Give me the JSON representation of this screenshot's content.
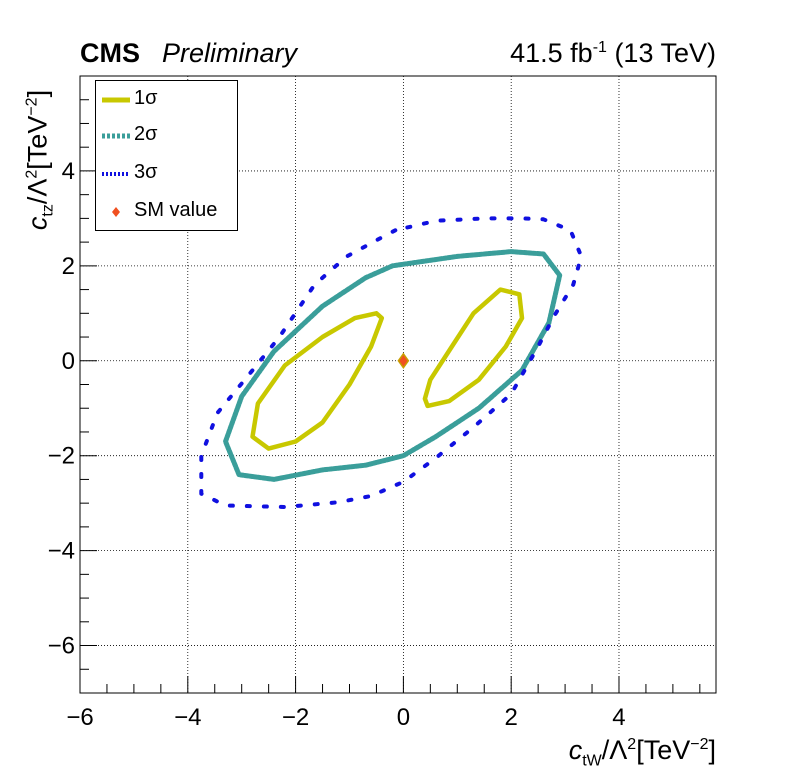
{
  "header": {
    "experiment": "CMS",
    "status": "Preliminary",
    "lumi_value": "41.5 fb",
    "lumi_exp": "-1",
    "energy": "(13 TeV)"
  },
  "colors": {
    "one_sigma": "#c8c800",
    "two_sigma": "#3a9e9a",
    "three_sigma": "#1010e0",
    "sm_fill": "#f05020",
    "sm_edge": "#c8a000"
  },
  "chart_data": {
    "type": "scatter",
    "xlabel": "c_tW/Λ^2[TeV^-2]",
    "ylabel": "c_tz/Λ^2[TeV^-2]",
    "xlim": [
      -6,
      5.8
    ],
    "ylim": [
      -7,
      6
    ],
    "grid": true,
    "legend_position": "top-left",
    "x_ticks": [
      -6,
      -4,
      -2,
      0,
      2,
      4
    ],
    "y_ticks": [
      -6,
      -4,
      -2,
      0,
      2,
      4
    ],
    "x_tick_labels": [
      "−6",
      "−4",
      "−2",
      "0",
      "2",
      "4"
    ],
    "y_tick_labels": [
      "−6",
      "−4",
      "−2",
      "0",
      "2",
      "4"
    ],
    "series": [
      {
        "name": "1σ",
        "style": "line",
        "contours": [
          [
            [
              -0.5,
              1.0
            ],
            [
              -0.9,
              0.9
            ],
            [
              -1.5,
              0.5
            ],
            [
              -2.2,
              -0.1
            ],
            [
              -2.7,
              -0.9
            ],
            [
              -2.8,
              -1.6
            ],
            [
              -2.5,
              -1.85
            ],
            [
              -2.0,
              -1.7
            ],
            [
              -1.5,
              -1.3
            ],
            [
              -1.0,
              -0.5
            ],
            [
              -0.6,
              0.3
            ],
            [
              -0.4,
              0.9
            ],
            [
              -0.5,
              1.0
            ]
          ],
          [
            [
              0.45,
              -0.95
            ],
            [
              0.85,
              -0.85
            ],
            [
              1.4,
              -0.4
            ],
            [
              1.9,
              0.3
            ],
            [
              2.2,
              0.9
            ],
            [
              2.15,
              1.4
            ],
            [
              1.8,
              1.5
            ],
            [
              1.3,
              1.0
            ],
            [
              0.9,
              0.3
            ],
            [
              0.5,
              -0.4
            ],
            [
              0.4,
              -0.8
            ],
            [
              0.45,
              -0.95
            ]
          ]
        ]
      },
      {
        "name": "2σ",
        "style": "dotted",
        "contours": [
          [
            [
              -0.2,
              2.0
            ],
            [
              -0.7,
              1.75
            ],
            [
              -1.5,
              1.15
            ],
            [
              -2.4,
              0.2
            ],
            [
              -3.0,
              -0.75
            ],
            [
              -3.3,
              -1.7
            ],
            [
              -3.05,
              -2.4
            ],
            [
              -2.4,
              -2.5
            ],
            [
              -1.5,
              -2.3
            ],
            [
              -0.7,
              -2.2
            ],
            [
              0.0,
              -2.0
            ],
            [
              0.6,
              -1.6
            ],
            [
              1.4,
              -1.0
            ],
            [
              2.2,
              -0.2
            ],
            [
              2.7,
              0.8
            ],
            [
              2.9,
              1.8
            ],
            [
              2.6,
              2.25
            ],
            [
              2.0,
              2.3
            ],
            [
              1.0,
              2.2
            ],
            [
              0.4,
              2.1
            ],
            [
              -0.2,
              2.0
            ]
          ]
        ]
      },
      {
        "name": "3σ",
        "style": "dotted",
        "contours": [
          [
            [
              -0.15,
              2.75
            ],
            [
              -0.4,
              2.6
            ],
            [
              -1.05,
              2.2
            ],
            [
              -1.65,
              1.6
            ],
            [
              -2.3,
              0.5
            ],
            [
              -2.8,
              -0.2
            ],
            [
              -3.45,
              -1.1
            ],
            [
              -3.75,
              -2.0
            ],
            [
              -3.75,
              -2.8
            ],
            [
              -3.3,
              -3.05
            ],
            [
              -2.2,
              -3.08
            ],
            [
              -1.2,
              -2.98
            ],
            [
              -0.6,
              -2.85
            ],
            [
              0.0,
              -2.55
            ],
            [
              0.6,
              -2.05
            ],
            [
              1.3,
              -1.4
            ],
            [
              2.0,
              -0.7
            ],
            [
              2.5,
              0.3
            ],
            [
              2.8,
              0.95
            ],
            [
              3.15,
              1.6
            ],
            [
              3.3,
              2.2
            ],
            [
              3.1,
              2.75
            ],
            [
              2.6,
              2.98
            ],
            [
              2.2,
              3.0
            ],
            [
              1.5,
              3.0
            ],
            [
              0.6,
              2.95
            ],
            [
              -0.15,
              2.75
            ]
          ]
        ]
      },
      {
        "name": "SM value",
        "style": "marker",
        "points": [
          [
            0,
            0
          ]
        ]
      }
    ]
  }
}
